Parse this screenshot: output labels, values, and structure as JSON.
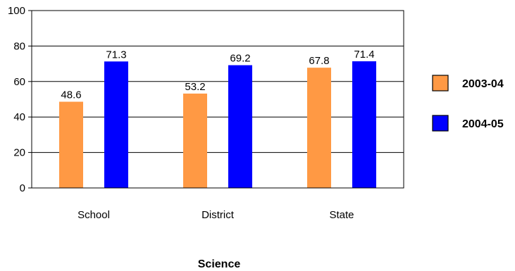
{
  "chart_data": {
    "type": "bar",
    "title": "",
    "xlabel": "Science",
    "ylabel": "",
    "categories": [
      "School",
      "District",
      "State"
    ],
    "series": [
      {
        "name": "2003-04",
        "values": [
          48.6,
          53.2,
          67.8
        ],
        "color": "#ff9944"
      },
      {
        "name": "2004-05",
        "values": [
          71.3,
          69.2,
          71.4
        ],
        "color": "#0000ff"
      }
    ],
    "ylim": [
      0,
      100
    ],
    "yticks": [
      0,
      20,
      40,
      60,
      80,
      100
    ],
    "grid": true,
    "legend_position": "right",
    "data_labels": true
  }
}
